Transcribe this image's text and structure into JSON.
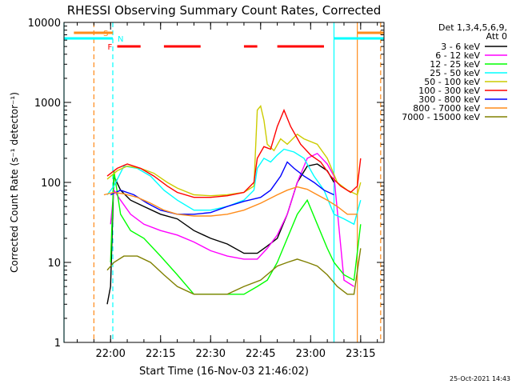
{
  "chart_data": {
    "type": "line",
    "title": "RHESSI Observing Summary Count Rates, Corrected",
    "xlabel": "Start Time (16-Nov-03 21:46:02)",
    "ylabel": "Corrected Count Rate (s⁻¹ detector⁻¹)",
    "footer": "25-Oct-2021 14:43",
    "y_scale": "log",
    "ylim": [
      1,
      10000
    ],
    "y_ticks": [
      1,
      10,
      100,
      1000,
      10000
    ],
    "y_tick_labels": [
      "1",
      "10",
      "100",
      "1000",
      "10000"
    ],
    "x_range": [
      "21:46:02",
      "23:22:00"
    ],
    "x_ticks": [
      "22:00",
      "22:15",
      "22:30",
      "22:45",
      "23:00",
      "23:15"
    ],
    "legend_header": [
      "Det 1,3,4,5,6,9,",
      "Att 0"
    ],
    "legend_position": "right",
    "flags": {
      "S": {
        "color": "#ff8c1a",
        "label": "S",
        "start": "21:49:00",
        "end": "22:00:40"
      },
      "N": {
        "color": "#00ffff",
        "label": "N",
        "start": "21:46:00",
        "end": "22:00:40"
      },
      "F": {
        "color": "#ff0000",
        "label": "F",
        "segments": [
          [
            "22:02",
            "22:09"
          ],
          [
            "22:16",
            "22:27"
          ],
          [
            "22:40",
            "22:44"
          ],
          [
            "22:50",
            "23:04"
          ]
        ]
      },
      "S_right": {
        "color": "#ff8c1a",
        "start": "23:14",
        "end": "23:22"
      },
      "N_right": {
        "color": "#00ffff",
        "start": "23:07",
        "end": "23:22"
      }
    },
    "vlines": [
      {
        "time": "21:46:02",
        "color": "#00ffff",
        "style": "solid"
      },
      {
        "time": "21:55:00",
        "color": "#ff8c1a",
        "style": "dashed"
      },
      {
        "time": "22:00:40",
        "color": "#00ffff",
        "style": "dashed"
      },
      {
        "time": "23:07:00",
        "color": "#00ffff",
        "style": "solid"
      },
      {
        "time": "23:14:00",
        "color": "#ff8c1a",
        "style": "solid"
      },
      {
        "time": "23:21:00",
        "color": "#ff8c1a",
        "style": "dashed"
      }
    ],
    "series": [
      {
        "name": "3 - 6 keV",
        "color": "#000000",
        "x": [
          "21:59",
          "22:00",
          "22:01",
          "22:03",
          "22:06",
          "22:10",
          "22:15",
          "22:20",
          "22:25",
          "22:30",
          "22:35",
          "22:40",
          "22:44",
          "22:47",
          "22:50",
          "22:53",
          "22:56",
          "22:59",
          "23:02",
          "23:05",
          "23:07"
        ],
        "y": [
          3,
          5,
          120,
          80,
          60,
          50,
          40,
          35,
          25,
          20,
          17,
          13,
          13,
          16,
          20,
          40,
          100,
          160,
          170,
          140,
          100
        ]
      },
      {
        "name": "6 - 12 keV",
        "color": "#ff00ff",
        "x": [
          "22:00",
          "22:01",
          "22:03",
          "22:06",
          "22:10",
          "22:15",
          "22:20",
          "22:25",
          "22:30",
          "22:35",
          "22:40",
          "22:44",
          "22:47",
          "22:50",
          "22:53",
          "22:56",
          "22:59",
          "23:02",
          "23:05",
          "23:07",
          "23:10",
          "23:13"
        ],
        "y": [
          30,
          80,
          60,
          40,
          30,
          25,
          22,
          18,
          14,
          12,
          11,
          11,
          15,
          22,
          40,
          100,
          200,
          230,
          170,
          120,
          6,
          5
        ]
      },
      {
        "name": "12 - 25 keV",
        "color": "#00ff00",
        "x": [
          "22:00",
          "22:01",
          "22:03",
          "22:06",
          "22:10",
          "22:15",
          "22:20",
          "22:25",
          "22:30",
          "22:35",
          "22:40",
          "22:44",
          "22:47",
          "22:50",
          "22:53",
          "22:56",
          "22:59",
          "23:02",
          "23:05",
          "23:07",
          "23:10",
          "23:13",
          "23:15"
        ],
        "y": [
          10,
          140,
          40,
          25,
          20,
          12,
          7,
          4,
          4,
          4,
          4,
          5,
          6,
          10,
          20,
          40,
          60,
          30,
          15,
          10,
          7,
          6,
          30
        ]
      },
      {
        "name": "25 - 50 keV",
        "color": "#00ffff",
        "x": [
          "21:59",
          "22:01",
          "22:04",
          "22:08",
          "22:12",
          "22:16",
          "22:20",
          "22:25",
          "22:30",
          "22:35",
          "22:40",
          "22:43",
          "22:44",
          "22:46",
          "22:48",
          "22:50",
          "22:52",
          "22:55",
          "22:58",
          "23:01",
          "23:04",
          "23:07",
          "23:10",
          "23:13",
          "23:15"
        ],
        "y": [
          70,
          90,
          160,
          150,
          120,
          80,
          60,
          45,
          45,
          50,
          60,
          80,
          150,
          200,
          180,
          220,
          260,
          240,
          200,
          120,
          80,
          40,
          35,
          30,
          60
        ]
      },
      {
        "name": "50 - 100 keV",
        "color": "#cccc00",
        "x": [
          "21:59",
          "22:02",
          "22:05",
          "22:09",
          "22:13",
          "22:17",
          "22:20",
          "22:25",
          "22:30",
          "22:35",
          "22:40",
          "22:43",
          "22:44",
          "22:45",
          "22:46",
          "22:47",
          "22:49",
          "22:51",
          "22:53",
          "22:56",
          "22:58",
          "23:02",
          "23:05",
          "23:08",
          "23:11",
          "23:14",
          "23:15"
        ],
        "y": [
          110,
          140,
          160,
          150,
          130,
          100,
          85,
          70,
          68,
          70,
          75,
          90,
          800,
          900,
          600,
          300,
          250,
          350,
          300,
          400,
          350,
          300,
          200,
          100,
          80,
          70,
          100
        ]
      },
      {
        "name": "100 - 300 keV",
        "color": "#ff0000",
        "x": [
          "21:59",
          "22:02",
          "22:05",
          "22:09",
          "22:13",
          "22:17",
          "22:20",
          "22:25",
          "22:30",
          "22:35",
          "22:40",
          "22:43",
          "22:44",
          "22:46",
          "22:48",
          "22:50",
          "22:52",
          "22:54",
          "22:57",
          "23:00",
          "23:03",
          "23:06",
          "23:09",
          "23:12",
          "23:14",
          "23:15"
        ],
        "y": [
          120,
          150,
          170,
          150,
          120,
          90,
          75,
          65,
          65,
          68,
          75,
          100,
          200,
          280,
          260,
          500,
          800,
          500,
          300,
          220,
          180,
          120,
          90,
          75,
          90,
          200
        ]
      },
      {
        "name": "300 - 800 keV",
        "color": "#0000ff",
        "x": [
          "22:00",
          "22:03",
          "22:07",
          "22:11",
          "22:15",
          "22:20",
          "22:25",
          "22:30",
          "22:35",
          "22:40",
          "22:45",
          "22:48",
          "22:51",
          "22:53",
          "22:55",
          "22:58",
          "23:01",
          "23:04",
          "23:07"
        ],
        "y": [
          70,
          80,
          70,
          55,
          45,
          40,
          40,
          42,
          50,
          58,
          65,
          80,
          120,
          180,
          150,
          120,
          100,
          80,
          70
        ]
      },
      {
        "name": "800 - 7000 keV",
        "color": "#ff8c1a",
        "x": [
          "21:58",
          "22:01",
          "22:04",
          "22:08",
          "22:12",
          "22:16",
          "22:20",
          "22:25",
          "22:30",
          "22:35",
          "22:40",
          "22:45",
          "22:50",
          "22:53",
          "22:56",
          "22:59",
          "23:02",
          "23:05",
          "23:08",
          "23:11",
          "23:14"
        ],
        "y": [
          70,
          75,
          72,
          65,
          55,
          45,
          40,
          38,
          38,
          40,
          45,
          55,
          70,
          80,
          88,
          82,
          70,
          60,
          50,
          40,
          40
        ]
      },
      {
        "name": "7000 - 15000 keV",
        "color": "#808000",
        "x": [
          "21:59",
          "22:01",
          "22:04",
          "22:08",
          "22:12",
          "22:16",
          "22:20",
          "22:25",
          "22:30",
          "22:35",
          "22:40",
          "22:45",
          "22:50",
          "22:53",
          "22:56",
          "22:59",
          "23:02",
          "23:05",
          "23:08",
          "23:11",
          "23:13",
          "23:15"
        ],
        "y": [
          8,
          10,
          12,
          12,
          10,
          7,
          5,
          4,
          4,
          4,
          5,
          6,
          9,
          10,
          11,
          10,
          9,
          7,
          5,
          4,
          4,
          15
        ]
      }
    ]
  }
}
